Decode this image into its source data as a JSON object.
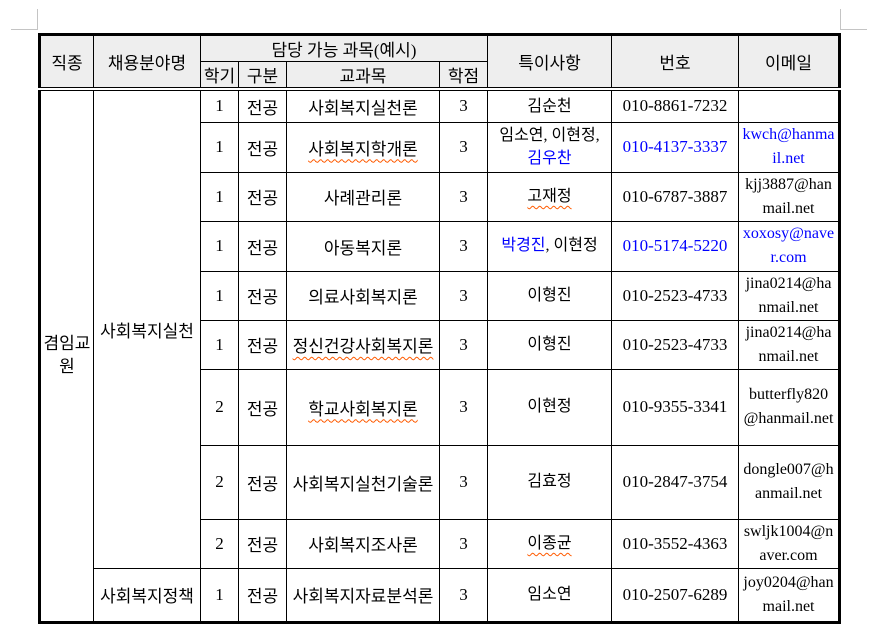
{
  "page": {
    "corner_mark_color": "#c4c4c4",
    "background": "#ffffff"
  },
  "table": {
    "colors": {
      "header_bg": "#eeeeee",
      "border": "#000000",
      "link_blue": "#0000ff",
      "spellcheck_wavy": "#ff5a00"
    },
    "header": {
      "job_type": "직종",
      "field_name": "채용분야명",
      "subjects_group": "담당 가능 과목(예시)",
      "semester": "학기",
      "category": "구분",
      "subject": "교과목",
      "credits": "학점",
      "notes": "특이사항",
      "phone": "번호",
      "email": "이메일"
    },
    "job_type_value": "겸임교원",
    "groups": [
      {
        "field": "사회복지실천",
        "rows": [
          {
            "semester": "1",
            "category": "전공",
            "subject": "사회복지실천론",
            "subject_wavy": false,
            "credits": "3",
            "notes": [
              {
                "text": "김순천"
              }
            ],
            "phone": "010-8861-7232",
            "phone_blue": false,
            "email": "",
            "email_blue": false
          },
          {
            "semester": "1",
            "category": "전공",
            "subject": "사회복지학개론",
            "subject_wavy": true,
            "credits": "3",
            "notes": [
              {
                "text": "임소연, 이현정, "
              },
              {
                "text": "김우찬",
                "blue": true
              }
            ],
            "phone": "010-4137-3337",
            "phone_blue": true,
            "email": "kwch@hanmail.net",
            "email_blue": true
          },
          {
            "semester": "1",
            "category": "전공",
            "subject": "사례관리론",
            "subject_wavy": false,
            "credits": "3",
            "notes": [
              {
                "text": "고재정",
                "wavy": true
              }
            ],
            "phone": "010-6787-3887",
            "phone_blue": false,
            "email": "kjj3887@hanmail.net",
            "email_blue": false
          },
          {
            "semester": "1",
            "category": "전공",
            "subject": "아동복지론",
            "subject_wavy": false,
            "credits": "3",
            "notes": [
              {
                "text": "박경진",
                "blue": true
              },
              {
                "text": ", 이현정"
              }
            ],
            "phone": "010-5174-5220",
            "phone_blue": true,
            "email": "xoxosy@naver.com",
            "email_blue": true
          },
          {
            "semester": "1",
            "category": "전공",
            "subject": "의료사회복지론",
            "subject_wavy": false,
            "credits": "3",
            "notes": [
              {
                "text": "이형진"
              }
            ],
            "phone": "010-2523-4733",
            "phone_blue": false,
            "email": "jina0214@hanmail.net",
            "email_blue": false
          },
          {
            "semester": "1",
            "category": "전공",
            "subject": "정신건강사회복지론",
            "subject_wavy": true,
            "credits": "3",
            "notes": [
              {
                "text": "이형진"
              }
            ],
            "phone": "010-2523-4733",
            "phone_blue": false,
            "email": "jina0214@hanmail.net",
            "email_blue": false
          },
          {
            "semester": "2",
            "category": "전공",
            "subject": "학교사회복지론",
            "subject_wavy": true,
            "credits": "3",
            "notes": [
              {
                "text": "이현정"
              }
            ],
            "phone": "010-9355-3341",
            "phone_blue": false,
            "email": "butterfly820@hanmail.net",
            "email_blue": false
          },
          {
            "semester": "2",
            "category": "전공",
            "subject": "사회복지실천기술론",
            "subject_wavy": false,
            "credits": "3",
            "notes": [
              {
                "text": "김효정"
              }
            ],
            "phone": "010-2847-3754",
            "phone_blue": false,
            "email": "dongle007@hanmail.net",
            "email_blue": false
          },
          {
            "semester": "2",
            "category": "전공",
            "subject": "사회복지조사론",
            "subject_wavy": false,
            "credits": "3",
            "notes": [
              {
                "text": "이종균",
                "wavy": true
              }
            ],
            "phone": "010-3552-4363",
            "phone_blue": false,
            "email": "swljk1004@naver.com",
            "email_blue": false
          }
        ]
      },
      {
        "field": "사회복지정책",
        "rows": [
          {
            "semester": "1",
            "category": "전공",
            "subject": "사회복지자료분석론",
            "subject_wavy": false,
            "credits": "3",
            "notes": [
              {
                "text": "임소연"
              }
            ],
            "phone": "010-2507-6289",
            "phone_blue": false,
            "email": "joy0204@hanmail.net",
            "email_blue": false
          }
        ]
      }
    ]
  }
}
